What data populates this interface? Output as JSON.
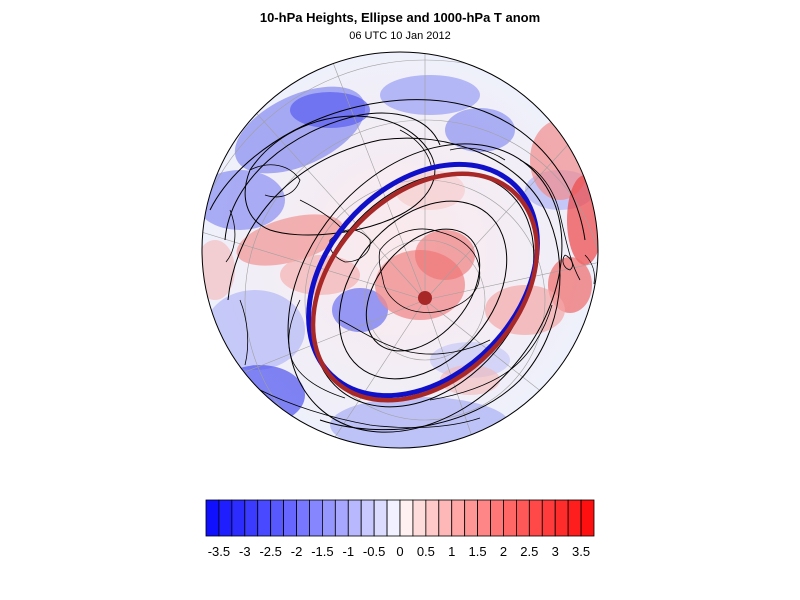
{
  "title": "10-hPa Heights, Ellipse and 1000-hPa T anom",
  "subtitle": "06 UTC 10 Jan 2012",
  "colorbar": {
    "labels": [
      "-3.5",
      "-3",
      "-2.5",
      "-2",
      "-1.5",
      "-1",
      "-0.5",
      "0",
      "0.5",
      "1",
      "1.5",
      "2",
      "2.5",
      "3",
      "3.5"
    ],
    "min": -3.75,
    "max": 3.75,
    "step": 0.25,
    "cold_color": "#1010ff",
    "warm_color": "#ff1010",
    "neutral_color": "#ffffff"
  },
  "map": {
    "projection": "polar-stereographic",
    "ellipse_colors": {
      "outer": "#1010c8",
      "inner": "#a82828",
      "center": "#a82828"
    }
  }
}
